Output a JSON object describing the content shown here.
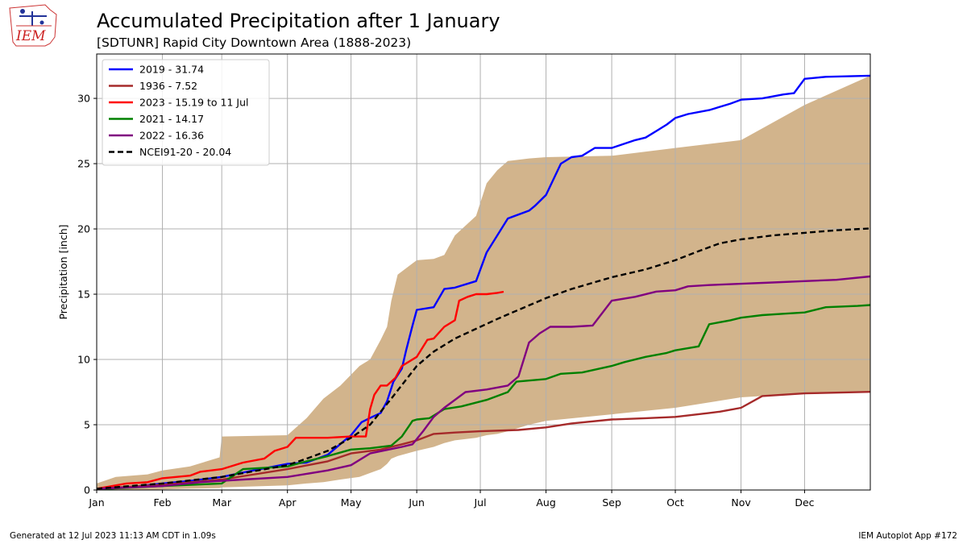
{
  "header": {
    "title": "Accumulated Precipitation after 1 January",
    "subtitle": "[SDTUNR] Rapid City Downtown Area (1888-2023)",
    "logo_text": "IEM"
  },
  "footer": {
    "left": "Generated at 12 Jul 2023 11:13 AM CDT in 1.09s",
    "right": "IEM Autoplot App #172"
  },
  "colors": {
    "band": "#d2b48c",
    "grid": "#b0b0b0"
  },
  "chart_data": {
    "type": "line",
    "xlabel": "",
    "ylabel": "Precipitation [inch]",
    "xlim": [
      1,
      366
    ],
    "ylim": [
      0,
      33.4
    ],
    "grid": true,
    "legend_position": "top-left",
    "x_tick_labels": [
      "Jan",
      "Feb",
      "Mar",
      "Apr",
      "May",
      "Jun",
      "Jul",
      "Aug",
      "Sep",
      "Oct",
      "Nov",
      "Dec"
    ],
    "x_tick_days": [
      1,
      32,
      60,
      91,
      121,
      152,
      182,
      213,
      244,
      274,
      305,
      335
    ],
    "y_ticks": [
      0,
      5,
      10,
      15,
      20,
      25,
      30
    ],
    "range_band": {
      "x": [
        1,
        10,
        25,
        32,
        45,
        59,
        60,
        91,
        100,
        108,
        116,
        125,
        130,
        135,
        138,
        140,
        143,
        152,
        160,
        165,
        170,
        180,
        185,
        190,
        195,
        205,
        213,
        244,
        274,
        305,
        335,
        366
      ],
      "lower": [
        0,
        0,
        0,
        0.05,
        0.1,
        0.15,
        0.2,
        0.35,
        0.5,
        0.6,
        0.8,
        1.0,
        1.3,
        1.6,
        2.0,
        2.4,
        2.6,
        3.0,
        3.3,
        3.6,
        3.8,
        4.0,
        4.2,
        4.3,
        4.5,
        5.0,
        5.3,
        5.8,
        6.3,
        7.1,
        7.4,
        7.5
      ],
      "upper": [
        0.5,
        1.0,
        1.2,
        1.5,
        1.8,
        2.5,
        4.1,
        4.2,
        5.5,
        7.0,
        8.0,
        9.5,
        10.0,
        11.5,
        12.5,
        14.5,
        16.5,
        17.6,
        17.7,
        18.0,
        19.5,
        21.0,
        23.5,
        24.5,
        25.2,
        25.4,
        25.5,
        25.6,
        26.2,
        26.8,
        29.5,
        31.74
      ]
    },
    "series": [
      {
        "name": "2019 - 31.74",
        "color": "#0000ff",
        "x": [
          1,
          15,
          32,
          45,
          60,
          75,
          91,
          100,
          110,
          118,
          121,
          126,
          131,
          135,
          138,
          141,
          145,
          147,
          150,
          152,
          160,
          165,
          170,
          180,
          185,
          190,
          195,
          205,
          208,
          213,
          220,
          225,
          230,
          236,
          244,
          255,
          260,
          265,
          270,
          274,
          280,
          290,
          300,
          305,
          315,
          325,
          330,
          335,
          345,
          366
        ],
        "y": [
          0.05,
          0.2,
          0.5,
          0.7,
          1.0,
          1.5,
          2.0,
          2.1,
          2.7,
          3.8,
          4.2,
          5.2,
          5.6,
          5.9,
          6.8,
          8.3,
          9.3,
          10.7,
          12.6,
          13.8,
          14.0,
          15.4,
          15.5,
          16.0,
          18.2,
          19.5,
          20.8,
          21.4,
          21.8,
          22.6,
          25.0,
          25.5,
          25.6,
          26.2,
          26.2,
          26.8,
          27.0,
          27.5,
          28.0,
          28.5,
          28.8,
          29.1,
          29.6,
          29.9,
          30.0,
          30.3,
          30.4,
          31.5,
          31.65,
          31.74
        ]
      },
      {
        "name": "1936 - 7.52",
        "color": "#a52a2a",
        "x": [
          1,
          32,
          60,
          91,
          110,
          121,
          135,
          140,
          145,
          152,
          160,
          170,
          182,
          200,
          213,
          225,
          244,
          260,
          274,
          290,
          295,
          305,
          315,
          335,
          366
        ],
        "y": [
          0.1,
          0.4,
          0.8,
          1.6,
          2.2,
          2.8,
          3.1,
          3.3,
          3.5,
          3.8,
          4.3,
          4.4,
          4.5,
          4.6,
          4.8,
          5.1,
          5.4,
          5.5,
          5.6,
          5.9,
          6.0,
          6.3,
          7.2,
          7.4,
          7.52
        ]
      },
      {
        "name": "2023 - 15.19 to 11 Jul",
        "color": "#ff0000",
        "x": [
          1,
          15,
          25,
          32,
          45,
          50,
          60,
          70,
          80,
          85,
          91,
          95,
          110,
          121,
          128,
          130,
          132,
          135,
          138,
          142,
          145,
          152,
          157,
          160,
          165,
          170,
          172,
          176,
          180,
          185,
          190,
          193
        ],
        "y": [
          0.1,
          0.5,
          0.6,
          0.9,
          1.1,
          1.4,
          1.6,
          2.1,
          2.4,
          3.0,
          3.3,
          4.0,
          4.0,
          4.1,
          4.1,
          6.2,
          7.3,
          8.0,
          8.0,
          8.6,
          9.5,
          10.2,
          11.5,
          11.6,
          12.5,
          13.0,
          14.5,
          14.8,
          15.0,
          15.0,
          15.1,
          15.19
        ]
      },
      {
        "name": "2021 - 14.17",
        "color": "#008000",
        "x": [
          1,
          32,
          60,
          70,
          91,
          100,
          110,
          121,
          130,
          140,
          145,
          150,
          152,
          158,
          165,
          173,
          185,
          195,
          199,
          213,
          220,
          230,
          244,
          250,
          260,
          270,
          274,
          285,
          290,
          300,
          305,
          315,
          325,
          335,
          345,
          360,
          366
        ],
        "y": [
          0.05,
          0.3,
          0.5,
          1.6,
          1.8,
          2.2,
          2.6,
          3.1,
          3.2,
          3.4,
          4.1,
          5.3,
          5.4,
          5.5,
          6.2,
          6.4,
          6.9,
          7.5,
          8.3,
          8.5,
          8.9,
          9.0,
          9.5,
          9.8,
          10.2,
          10.5,
          10.7,
          11.0,
          12.7,
          13.0,
          13.2,
          13.4,
          13.5,
          13.6,
          14.0,
          14.1,
          14.17
        ]
      },
      {
        "name": "2022 - 16.36",
        "color": "#800080",
        "x": [
          1,
          32,
          50,
          70,
          91,
          110,
          121,
          130,
          145,
          150,
          155,
          160,
          165,
          175,
          185,
          195,
          200,
          205,
          210,
          215,
          225,
          235,
          244,
          255,
          265,
          274,
          280,
          290,
          305,
          320,
          335,
          350,
          366
        ],
        "y": [
          0.1,
          0.3,
          0.6,
          0.8,
          1.0,
          1.5,
          1.9,
          2.8,
          3.3,
          3.5,
          4.5,
          5.6,
          6.3,
          7.5,
          7.7,
          8.0,
          8.7,
          11.3,
          12.0,
          12.5,
          12.5,
          12.6,
          14.5,
          14.8,
          15.2,
          15.3,
          15.6,
          15.7,
          15.8,
          15.9,
          16.0,
          16.1,
          16.36
        ]
      },
      {
        "name": "NCEI91-20 - 20.04",
        "color": "#000000",
        "dashed": true,
        "x": [
          1,
          32,
          60,
          91,
          100,
          110,
          121,
          130,
          140,
          152,
          160,
          170,
          182,
          190,
          200,
          213,
          225,
          244,
          260,
          274,
          285,
          295,
          305,
          320,
          335,
          350,
          366
        ],
        "y": [
          0.1,
          0.5,
          1.0,
          1.9,
          2.4,
          3.0,
          4.0,
          5.0,
          7.0,
          9.5,
          10.6,
          11.6,
          12.5,
          13.1,
          13.8,
          14.7,
          15.4,
          16.3,
          16.9,
          17.6,
          18.3,
          18.9,
          19.2,
          19.5,
          19.7,
          19.9,
          20.04
        ]
      }
    ]
  }
}
